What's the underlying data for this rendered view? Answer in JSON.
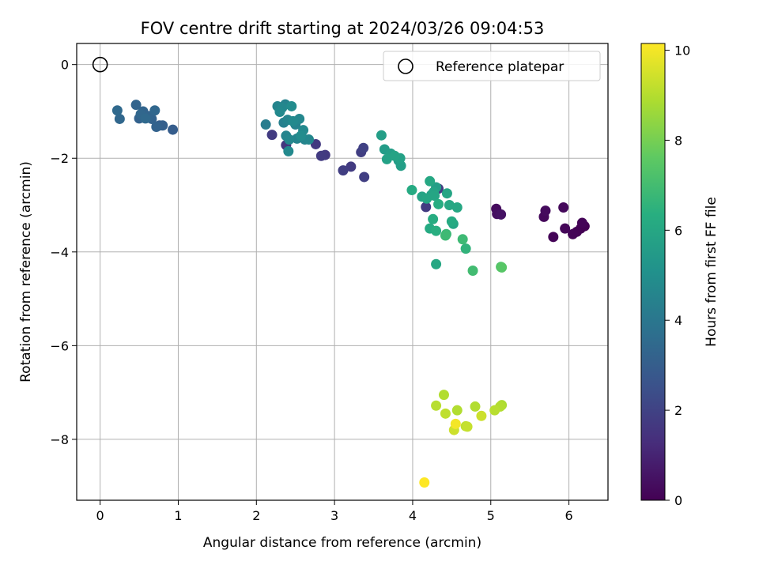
{
  "chart_data": {
    "type": "scatter",
    "title": "FOV centre drift starting at 2024/03/26 09:04:53",
    "xlabel": "Angular distance from reference (arcmin)",
    "ylabel": "Rotation from reference (arcmin)",
    "xlim": [
      -0.3,
      6.5
    ],
    "ylim": [
      -9.3,
      0.45
    ],
    "xticks": [
      0,
      1,
      2,
      3,
      4,
      5,
      6
    ],
    "yticks": [
      0,
      -2,
      -4,
      -6,
      -8
    ],
    "xtick_labels": [
      "0",
      "1",
      "2",
      "3",
      "4",
      "5",
      "6"
    ],
    "ytick_labels": [
      "0",
      "−2",
      "−4",
      "−6",
      "−8"
    ],
    "grid": true,
    "legend": {
      "placement": "upper-right",
      "entries": [
        "Reference platepar"
      ]
    },
    "reference_point": {
      "name": "Reference platepar",
      "x": 0,
      "y": 0
    },
    "colorbar": {
      "label": "Hours from first FF file",
      "colormap": "viridis",
      "range": [
        0,
        10.15
      ],
      "ticks": [
        0,
        2,
        4,
        6,
        8,
        10
      ],
      "tick_labels": [
        "0",
        "2",
        "4",
        "6",
        "8",
        "10"
      ]
    },
    "points": [
      {
        "x": 5.07,
        "y": -3.08,
        "h": 0.3
      },
      {
        "x": 5.08,
        "y": -3.19,
        "h": 0.4
      },
      {
        "x": 5.13,
        "y": -3.2,
        "h": 0.5
      },
      {
        "x": 5.68,
        "y": -3.25,
        "h": 0.2
      },
      {
        "x": 5.7,
        "y": -3.12,
        "h": 0.3
      },
      {
        "x": 5.8,
        "y": -3.68,
        "h": 0.1
      },
      {
        "x": 5.93,
        "y": -3.05,
        "h": 0.2
      },
      {
        "x": 5.95,
        "y": -3.5,
        "h": 0.15
      },
      {
        "x": 6.05,
        "y": -3.62,
        "h": 0.1
      },
      {
        "x": 6.1,
        "y": -3.57,
        "h": 0.05
      },
      {
        "x": 6.15,
        "y": -3.5,
        "h": 0.0
      },
      {
        "x": 6.17,
        "y": -3.38,
        "h": 0.1
      },
      {
        "x": 6.2,
        "y": -3.45,
        "h": 0.0
      },
      {
        "x": 2.2,
        "y": -1.5,
        "h": 1.8
      },
      {
        "x": 2.38,
        "y": -1.72,
        "h": 1.6
      },
      {
        "x": 2.76,
        "y": -1.7,
        "h": 1.7
      },
      {
        "x": 2.83,
        "y": -1.95,
        "h": 1.8
      },
      {
        "x": 2.88,
        "y": -1.93,
        "h": 1.7
      },
      {
        "x": 3.11,
        "y": -2.26,
        "h": 1.9
      },
      {
        "x": 3.21,
        "y": -2.18,
        "h": 1.8
      },
      {
        "x": 3.34,
        "y": -1.87,
        "h": 1.9
      },
      {
        "x": 3.37,
        "y": -1.78,
        "h": 2.0
      },
      {
        "x": 3.38,
        "y": -2.4,
        "h": 1.9
      },
      {
        "x": 4.17,
        "y": -3.04,
        "h": 1.8
      },
      {
        "x": 4.33,
        "y": -2.65,
        "h": 1.9
      },
      {
        "x": 0.22,
        "y": -0.98,
        "h": 3.5
      },
      {
        "x": 0.25,
        "y": -1.16,
        "h": 3.4
      },
      {
        "x": 0.46,
        "y": -0.86,
        "h": 3.3
      },
      {
        "x": 0.5,
        "y": -1.15,
        "h": 3.2
      },
      {
        "x": 0.52,
        "y": -1.06,
        "h": 3.4
      },
      {
        "x": 0.55,
        "y": -1.0,
        "h": 3.3
      },
      {
        "x": 0.58,
        "y": -1.15,
        "h": 3.5
      },
      {
        "x": 0.62,
        "y": -1.1,
        "h": 3.3
      },
      {
        "x": 0.66,
        "y": -1.16,
        "h": 3.2
      },
      {
        "x": 0.7,
        "y": -0.98,
        "h": 3.4
      },
      {
        "x": 0.72,
        "y": -1.33,
        "h": 3.2
      },
      {
        "x": 0.76,
        "y": -1.3,
        "h": 3.0
      },
      {
        "x": 0.8,
        "y": -1.3,
        "h": 3.1
      },
      {
        "x": 0.93,
        "y": -1.39,
        "h": 3.0
      },
      {
        "x": 2.12,
        "y": -1.28,
        "h": 4.3
      },
      {
        "x": 2.27,
        "y": -0.89,
        "h": 4.6
      },
      {
        "x": 2.3,
        "y": -1.01,
        "h": 4.8
      },
      {
        "x": 2.33,
        "y": -0.92,
        "h": 4.7
      },
      {
        "x": 2.35,
        "y": -1.24,
        "h": 4.4
      },
      {
        "x": 2.37,
        "y": -0.85,
        "h": 4.5
      },
      {
        "x": 2.38,
        "y": -1.52,
        "h": 4.6
      },
      {
        "x": 2.4,
        "y": -1.18,
        "h": 4.6
      },
      {
        "x": 2.41,
        "y": -1.85,
        "h": 4.8
      },
      {
        "x": 2.42,
        "y": -1.6,
        "h": 4.7
      },
      {
        "x": 2.45,
        "y": -0.89,
        "h": 4.9
      },
      {
        "x": 2.47,
        "y": -1.21,
        "h": 4.8
      },
      {
        "x": 2.5,
        "y": -1.28,
        "h": 4.5
      },
      {
        "x": 2.52,
        "y": -1.58,
        "h": 4.6
      },
      {
        "x": 2.55,
        "y": -1.16,
        "h": 4.7
      },
      {
        "x": 2.57,
        "y": -1.52,
        "h": 4.9
      },
      {
        "x": 2.6,
        "y": -1.4,
        "h": 4.8
      },
      {
        "x": 2.62,
        "y": -1.6,
        "h": 4.6
      },
      {
        "x": 2.67,
        "y": -1.6,
        "h": 4.7
      },
      {
        "x": 3.6,
        "y": -1.51,
        "h": 5.7
      },
      {
        "x": 3.64,
        "y": -1.81,
        "h": 5.6
      },
      {
        "x": 3.67,
        "y": -2.02,
        "h": 5.8
      },
      {
        "x": 3.72,
        "y": -1.9,
        "h": 5.7
      },
      {
        "x": 3.77,
        "y": -1.95,
        "h": 5.9
      },
      {
        "x": 3.82,
        "y": -2.05,
        "h": 5.6
      },
      {
        "x": 3.84,
        "y": -2.0,
        "h": 5.8
      },
      {
        "x": 3.85,
        "y": -2.16,
        "h": 5.7
      },
      {
        "x": 3.99,
        "y": -2.68,
        "h": 6.2
      },
      {
        "x": 4.12,
        "y": -2.82,
        "h": 5.9
      },
      {
        "x": 4.18,
        "y": -2.86,
        "h": 6.0
      },
      {
        "x": 4.22,
        "y": -2.49,
        "h": 6.1
      },
      {
        "x": 4.24,
        "y": -2.78,
        "h": 5.8
      },
      {
        "x": 4.27,
        "y": -2.72,
        "h": 5.9
      },
      {
        "x": 4.28,
        "y": -2.8,
        "h": 6.0
      },
      {
        "x": 4.3,
        "y": -2.62,
        "h": 5.7
      },
      {
        "x": 4.26,
        "y": -3.3,
        "h": 6.3
      },
      {
        "x": 4.3,
        "y": -3.55,
        "h": 6.4
      },
      {
        "x": 4.33,
        "y": -2.98,
        "h": 6.3
      },
      {
        "x": 4.22,
        "y": -3.5,
        "h": 6.2
      },
      {
        "x": 4.3,
        "y": -4.26,
        "h": 6.1
      },
      {
        "x": 4.44,
        "y": -2.75,
        "h": 6.0
      },
      {
        "x": 4.47,
        "y": -3.0,
        "h": 6.1
      },
      {
        "x": 4.5,
        "y": -3.35,
        "h": 6.2
      },
      {
        "x": 4.52,
        "y": -3.4,
        "h": 6.0
      },
      {
        "x": 4.57,
        "y": -3.05,
        "h": 6.1
      },
      {
        "x": 4.42,
        "y": -3.65,
        "h": 6.9
      },
      {
        "x": 4.43,
        "y": -3.62,
        "h": 6.8
      },
      {
        "x": 4.64,
        "y": -3.73,
        "h": 6.9
      },
      {
        "x": 4.68,
        "y": -3.93,
        "h": 6.6
      },
      {
        "x": 4.77,
        "y": -4.4,
        "h": 7.0
      },
      {
        "x": 5.13,
        "y": -4.32,
        "h": 7.3
      },
      {
        "x": 5.14,
        "y": -4.33,
        "h": 7.5
      },
      {
        "x": 4.15,
        "y": -8.92,
        "h": 10.15
      },
      {
        "x": 4.3,
        "y": -7.28,
        "h": 9.1
      },
      {
        "x": 4.4,
        "y": -7.05,
        "h": 9.0
      },
      {
        "x": 4.42,
        "y": -7.45,
        "h": 9.2
      },
      {
        "x": 4.53,
        "y": -7.8,
        "h": 9.4
      },
      {
        "x": 4.55,
        "y": -7.67,
        "h": 10.0
      },
      {
        "x": 4.57,
        "y": -7.38,
        "h": 9.0
      },
      {
        "x": 4.68,
        "y": -7.72,
        "h": 9.2
      },
      {
        "x": 4.7,
        "y": -7.73,
        "h": 9.3
      },
      {
        "x": 4.8,
        "y": -7.3,
        "h": 9.0
      },
      {
        "x": 4.88,
        "y": -7.5,
        "h": 9.4
      },
      {
        "x": 5.05,
        "y": -7.38,
        "h": 9.1
      },
      {
        "x": 5.12,
        "y": -7.3,
        "h": 9.0
      },
      {
        "x": 5.14,
        "y": -7.27,
        "h": 8.9
      }
    ]
  },
  "colors": {
    "grid": "#b0b0b0",
    "frame": "#000000",
    "reference_marker": "#000000"
  }
}
